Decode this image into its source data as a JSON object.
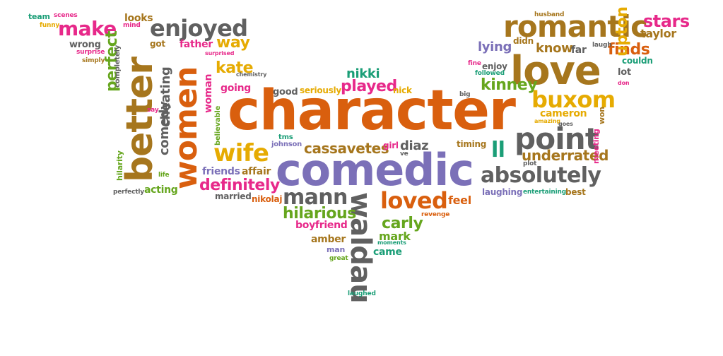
{
  "palette": {
    "orange": "#d95f0e",
    "purple": "#7b70b8",
    "gray": "#606060",
    "olive": "#a6761d",
    "pink": "#e7298a",
    "green": "#66a61e",
    "teal": "#1b9e77",
    "gold": "#e6ab02"
  },
  "words": [
    {
      "text": "character",
      "color": "orange"
    },
    {
      "text": "comedic",
      "color": "purple"
    },
    {
      "text": "love",
      "color": "olive"
    },
    {
      "text": "romantic",
      "color": "olive"
    },
    {
      "text": "better",
      "color": "olive"
    },
    {
      "text": "women",
      "color": "orange"
    },
    {
      "text": "point",
      "color": "gray"
    },
    {
      "text": "absolutely",
      "color": "gray"
    },
    {
      "text": "waldau",
      "color": "gray"
    },
    {
      "text": "buxom",
      "color": "gold"
    },
    {
      "text": "enjoyed",
      "color": "gray"
    },
    {
      "text": "wife",
      "color": "gold"
    },
    {
      "text": "make",
      "color": "pink"
    },
    {
      "text": "loved",
      "color": "orange"
    },
    {
      "text": "mann",
      "color": "gray"
    },
    {
      "text": "cassavetes",
      "color": "olive"
    },
    {
      "text": "definitely",
      "color": "pink"
    },
    {
      "text": "ll",
      "color": "teal"
    },
    {
      "text": "stars",
      "color": "pink"
    },
    {
      "text": "finds",
      "color": "orange"
    },
    {
      "text": "kinney",
      "color": "green"
    },
    {
      "text": "upton",
      "color": "gold"
    },
    {
      "text": "underrated",
      "color": "olive"
    },
    {
      "text": "hilarious",
      "color": "green"
    },
    {
      "text": "played",
      "color": "pink"
    },
    {
      "text": "carly",
      "color": "green"
    },
    {
      "text": "way",
      "color": "gold"
    },
    {
      "text": "kate",
      "color": "gold"
    },
    {
      "text": "know",
      "color": "olive"
    },
    {
      "text": "lying",
      "color": "purple"
    },
    {
      "text": "perfect",
      "color": "green"
    },
    {
      "text": "cheating",
      "color": "gray"
    },
    {
      "text": "comedy",
      "color": "gray"
    },
    {
      "text": "diaz",
      "color": "gray"
    },
    {
      "text": "nikki",
      "color": "teal"
    },
    {
      "text": "taylor",
      "color": "olive"
    },
    {
      "text": "cameron",
      "color": "gold"
    },
    {
      "text": "mark",
      "color": "green"
    },
    {
      "text": "amber",
      "color": "olive"
    },
    {
      "text": "came",
      "color": "teal"
    },
    {
      "text": "feel",
      "color": "orange"
    },
    {
      "text": "boyfriend",
      "color": "pink"
    },
    {
      "text": "father",
      "color": "pink"
    },
    {
      "text": "woman",
      "color": "pink"
    },
    {
      "text": "going",
      "color": "pink"
    },
    {
      "text": "friends",
      "color": "purple"
    },
    {
      "text": "affair",
      "color": "olive"
    },
    {
      "text": "acting",
      "color": "green"
    },
    {
      "text": "looks",
      "color": "olive"
    },
    {
      "text": "enjoy",
      "color": "gray"
    },
    {
      "text": "lot",
      "color": "gray"
    },
    {
      "text": "couldn",
      "color": "teal"
    },
    {
      "text": "far",
      "color": "gray"
    },
    {
      "text": "didn",
      "color": "olive"
    },
    {
      "text": "wrong",
      "color": "gray"
    },
    {
      "text": "got",
      "color": "olive"
    },
    {
      "text": "good",
      "color": "gray"
    },
    {
      "text": "seriously",
      "color": "gold"
    },
    {
      "text": "nick",
      "color": "gold"
    },
    {
      "text": "laughing",
      "color": "purple"
    },
    {
      "text": "best",
      "color": "olive"
    },
    {
      "text": "timing",
      "color": "olive"
    },
    {
      "text": "won",
      "color": "olive"
    },
    {
      "text": "meeting",
      "color": "pink"
    },
    {
      "text": "married",
      "color": "gray"
    },
    {
      "text": "nikolaj",
      "color": "orange"
    },
    {
      "text": "johnson",
      "color": "purple"
    },
    {
      "text": "girl",
      "color": "pink"
    },
    {
      "text": "believable",
      "color": "green"
    },
    {
      "text": "hilarity",
      "color": "green"
    },
    {
      "text": "completely",
      "color": "gray"
    },
    {
      "text": "entertaining",
      "color": "teal"
    },
    {
      "text": "team",
      "color": "teal"
    },
    {
      "text": "funny",
      "color": "gold"
    },
    {
      "text": "scenes",
      "color": "pink"
    },
    {
      "text": "mind",
      "color": "pink"
    },
    {
      "text": "surprise",
      "color": "pink"
    },
    {
      "text": "simply",
      "color": "olive"
    },
    {
      "text": "surprised",
      "color": "pink"
    },
    {
      "text": "chemistry",
      "color": "gray"
    },
    {
      "text": "husband",
      "color": "olive"
    },
    {
      "text": "laugh",
      "color": "gray"
    },
    {
      "text": "fine",
      "color": "pink"
    },
    {
      "text": "followed",
      "color": "teal"
    },
    {
      "text": "big",
      "color": "gray"
    },
    {
      "text": "don",
      "color": "pink"
    },
    {
      "text": "amazing",
      "color": "gold"
    },
    {
      "text": "goes",
      "color": "gray"
    },
    {
      "text": "plot",
      "color": "gray"
    },
    {
      "text": "tms",
      "color": "teal"
    },
    {
      "text": "ve",
      "color": "gray"
    },
    {
      "text": "revenge",
      "color": "orange"
    },
    {
      "text": "moments",
      "color": "teal"
    },
    {
      "text": "man",
      "color": "purple"
    },
    {
      "text": "great",
      "color": "green"
    },
    {
      "text": "laughed",
      "color": "teal"
    },
    {
      "text": "say",
      "color": "pink"
    },
    {
      "text": "life",
      "color": "green"
    },
    {
      "text": "perfectly",
      "color": "gray"
    }
  ]
}
